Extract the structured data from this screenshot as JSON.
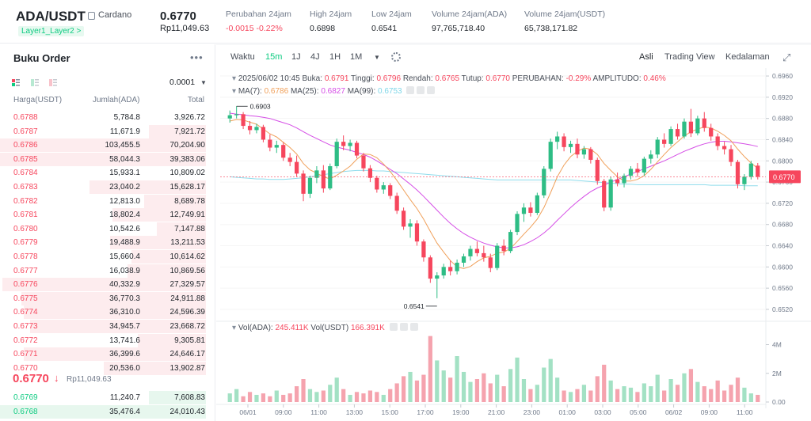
{
  "header": {
    "pair": "ADA/USDT",
    "coin_name": "Cardano",
    "tag": "Layer1_Layer2 >",
    "last_price": "0.6770",
    "last_price_idr": "Rp11,049.63",
    "stats": [
      {
        "label": "Perubahan 24jam",
        "value": "-0.0015 -0.22%",
        "color": "red"
      },
      {
        "label": "High 24jam",
        "value": "0.6898",
        "color": ""
      },
      {
        "label": "Low 24jam",
        "value": "0.6541",
        "color": ""
      },
      {
        "label": "Volume 24jam(ADA)",
        "value": "97,765,718.40",
        "color": ""
      },
      {
        "label": "Volume 24jam(USDT)",
        "value": "65,738,171.82",
        "color": ""
      }
    ]
  },
  "orderbook": {
    "title": "Buku Order",
    "menu": "•••",
    "precision": "0.0001",
    "col_price": "Harga(USDT)",
    "col_amount": "Jumlah(ADA)",
    "col_total": "Total",
    "asks": [
      {
        "p": "0.6788",
        "a": "5,784.8",
        "t": "3,926.72",
        "fill": 0.0
      },
      {
        "p": "0.6787",
        "a": "11,671.9",
        "t": "7,921.72",
        "fill": 0.27
      },
      {
        "p": "0.6786",
        "a": "103,455.5",
        "t": "70,204.90",
        "fill": 1.0
      },
      {
        "p": "0.6785",
        "a": "58,044.3",
        "t": "39,383.06",
        "fill": 1.0
      },
      {
        "p": "0.6784",
        "a": "15,933.1",
        "t": "10,809.02",
        "fill": 0.0
      },
      {
        "p": "0.6783",
        "a": "23,040.2",
        "t": "15,628.17",
        "fill": 0.55
      },
      {
        "p": "0.6782",
        "a": "12,813.0",
        "t": "8,689.78",
        "fill": 0.29
      },
      {
        "p": "0.6781",
        "a": "18,802.4",
        "t": "12,749.91",
        "fill": 0.44
      },
      {
        "p": "0.6780",
        "a": "10,542.6",
        "t": "7,147.88",
        "fill": 0.23
      },
      {
        "p": "0.6779",
        "a": "19,488.9",
        "t": "13,211.53",
        "fill": 0.45
      },
      {
        "p": "0.6778",
        "a": "15,660.4",
        "t": "10,614.62",
        "fill": 0.35
      },
      {
        "p": "0.6777",
        "a": "16,038.9",
        "t": "10,869.56",
        "fill": 0.37
      },
      {
        "p": "0.6776",
        "a": "40,332.9",
        "t": "27,329.57",
        "fill": 0.96
      },
      {
        "p": "0.6775",
        "a": "36,770.3",
        "t": "24,911.88",
        "fill": 0.87
      },
      {
        "p": "0.6774",
        "a": "36,310.0",
        "t": "24,596.39",
        "fill": 0.86
      },
      {
        "p": "0.6773",
        "a": "34,945.7",
        "t": "23,668.72",
        "fill": 0.83
      },
      {
        "p": "0.6772",
        "a": "13,741.6",
        "t": "9,305.81",
        "fill": 0.32
      },
      {
        "p": "0.6771",
        "a": "36,399.6",
        "t": "24,646.17",
        "fill": 0.86
      },
      {
        "p": "0.6770",
        "a": "20,536.0",
        "t": "13,902.87",
        "fill": 0.48
      }
    ],
    "mid_price": "0.6770",
    "mid_arrow": "↓",
    "mid_idr": "Rp11,049.63",
    "bids": [
      {
        "p": "0.6769",
        "a": "11,240.7",
        "t": "7,608.83",
        "fill": 0.27
      },
      {
        "p": "0.6768",
        "a": "35,476.4",
        "t": "24,010.43",
        "fill": 1.0
      }
    ]
  },
  "toolbar": {
    "left": [
      "Waktu",
      "15m",
      "1J",
      "4J",
      "1H",
      "1M"
    ],
    "active": "15m",
    "right": [
      "Asli",
      "Trading View",
      "Kedalaman"
    ],
    "right_active": "Asli"
  },
  "info": {
    "date": "2025/06/02 10:45",
    "open_lbl": "Buka:",
    "open": "0.6791",
    "high_lbl": "Tinggi:",
    "high": "0.6796",
    "low_lbl": "Rendah:",
    "low": "0.6765",
    "close_lbl": "Tutup:",
    "close": "0.6770",
    "chg_lbl": "PERUBAHAN:",
    "chg": "-0.29%",
    "amp_lbl": "AMPLITUDO:",
    "amp": "0.46%",
    "ma7_lbl": "MA(7):",
    "ma7": "0.6786",
    "ma25_lbl": "MA(25):",
    "ma25": "0.6827",
    "ma99_lbl": "MA(99):",
    "ma99": "0.6753",
    "vol_lbl": "Vol(ADA):",
    "vol": "245.411K",
    "volu_lbl": "Vol(USDT)",
    "volu": "166.391K"
  },
  "chart_data": {
    "type": "candlestick",
    "price_ticks": [
      "0.6960",
      "0.6920",
      "0.6880",
      "0.6840",
      "0.6800",
      "0.6760",
      "0.6720",
      "0.6680",
      "0.6640",
      "0.6600",
      "0.6560",
      "0.6520"
    ],
    "price_range": [
      0.6505,
      0.6975
    ],
    "current_price_label": "0.6770",
    "high_label": "0.6903",
    "low_label": "0.6541",
    "vol_ticks": [
      "4M",
      "2M",
      "0.00"
    ],
    "vol_max": 4.8,
    "x_labels": [
      "06/01",
      "09:00",
      "11:00",
      "13:00",
      "15:00",
      "17:00",
      "19:00",
      "21:00",
      "23:00",
      "01:00",
      "03:00",
      "05:00",
      "06/02",
      "09:00",
      "11:00"
    ],
    "candles": [
      [
        0.688,
        0.6895,
        0.6872,
        0.6886
      ],
      [
        0.6886,
        0.6903,
        0.688,
        0.6888
      ],
      [
        0.6888,
        0.6892,
        0.686,
        0.6866
      ],
      [
        0.6866,
        0.6875,
        0.685,
        0.6858
      ],
      [
        0.6858,
        0.687,
        0.6852,
        0.6864
      ],
      [
        0.6864,
        0.6868,
        0.6835,
        0.684
      ],
      [
        0.684,
        0.685,
        0.6818,
        0.6825
      ],
      [
        0.6825,
        0.6838,
        0.6815,
        0.683
      ],
      [
        0.683,
        0.6835,
        0.68,
        0.6806
      ],
      [
        0.6806,
        0.6815,
        0.679,
        0.6798
      ],
      [
        0.6798,
        0.681,
        0.677,
        0.6776
      ],
      [
        0.6776,
        0.6782,
        0.6724,
        0.6738
      ],
      [
        0.6738,
        0.6772,
        0.673,
        0.6768
      ],
      [
        0.6768,
        0.679,
        0.6758,
        0.6782
      ],
      [
        0.6782,
        0.6792,
        0.674,
        0.6748
      ],
      [
        0.6748,
        0.6795,
        0.6745,
        0.679
      ],
      [
        0.679,
        0.6842,
        0.6786,
        0.6836
      ],
      [
        0.6836,
        0.6848,
        0.682,
        0.6828
      ],
      [
        0.6828,
        0.684,
        0.6818,
        0.6834
      ],
      [
        0.6834,
        0.6838,
        0.6805,
        0.681
      ],
      [
        0.681,
        0.6815,
        0.678,
        0.6786
      ],
      [
        0.6786,
        0.6792,
        0.676,
        0.6768
      ],
      [
        0.6768,
        0.6772,
        0.674,
        0.6746
      ],
      [
        0.6746,
        0.676,
        0.6738,
        0.6754
      ],
      [
        0.6754,
        0.6758,
        0.6728,
        0.6734
      ],
      [
        0.6734,
        0.674,
        0.67,
        0.6706
      ],
      [
        0.6706,
        0.6712,
        0.667,
        0.6676
      ],
      [
        0.6676,
        0.669,
        0.6655,
        0.6682
      ],
      [
        0.6682,
        0.6688,
        0.664,
        0.6648
      ],
      [
        0.6648,
        0.6652,
        0.661,
        0.6618
      ],
      [
        0.6618,
        0.6622,
        0.657,
        0.6578
      ],
      [
        0.6578,
        0.659,
        0.6541,
        0.6584
      ],
      [
        0.6584,
        0.6606,
        0.6578,
        0.66
      ],
      [
        0.66,
        0.6612,
        0.6584,
        0.6592
      ],
      [
        0.6592,
        0.6614,
        0.6586,
        0.6608
      ],
      [
        0.6608,
        0.6625,
        0.66,
        0.662
      ],
      [
        0.662,
        0.664,
        0.6612,
        0.6634
      ],
      [
        0.6634,
        0.6648,
        0.662,
        0.6626
      ],
      [
        0.6626,
        0.664,
        0.661,
        0.6618
      ],
      [
        0.6618,
        0.6625,
        0.659,
        0.6598
      ],
      [
        0.6598,
        0.6645,
        0.6594,
        0.664
      ],
      [
        0.664,
        0.6652,
        0.6622,
        0.663
      ],
      [
        0.663,
        0.667,
        0.6626,
        0.6666
      ],
      [
        0.6666,
        0.6705,
        0.666,
        0.67
      ],
      [
        0.67,
        0.672,
        0.6685,
        0.6712
      ],
      [
        0.6712,
        0.6722,
        0.6695,
        0.6702
      ],
      [
        0.6702,
        0.674,
        0.6698,
        0.6735
      ],
      [
        0.6735,
        0.679,
        0.673,
        0.6785
      ],
      [
        0.6785,
        0.6842,
        0.678,
        0.6836
      ],
      [
        0.6836,
        0.6855,
        0.6822,
        0.6846
      ],
      [
        0.6846,
        0.6852,
        0.6818,
        0.6826
      ],
      [
        0.6826,
        0.6838,
        0.6815,
        0.6832
      ],
      [
        0.6832,
        0.6842,
        0.6805,
        0.6812
      ],
      [
        0.6812,
        0.6828,
        0.6804,
        0.6822
      ],
      [
        0.6822,
        0.6826,
        0.6795,
        0.6802
      ],
      [
        0.6802,
        0.6806,
        0.6755,
        0.6762
      ],
      [
        0.6762,
        0.6766,
        0.6705,
        0.6712
      ],
      [
        0.6712,
        0.677,
        0.6706,
        0.6765
      ],
      [
        0.6765,
        0.6778,
        0.6752,
        0.6758
      ],
      [
        0.6758,
        0.6776,
        0.675,
        0.6772
      ],
      [
        0.6772,
        0.679,
        0.6765,
        0.6785
      ],
      [
        0.6785,
        0.6796,
        0.677,
        0.6778
      ],
      [
        0.6778,
        0.6808,
        0.6772,
        0.6804
      ],
      [
        0.6804,
        0.682,
        0.6795,
        0.6812
      ],
      [
        0.6812,
        0.6845,
        0.6805,
        0.684
      ],
      [
        0.684,
        0.6852,
        0.6825,
        0.6832
      ],
      [
        0.6832,
        0.6865,
        0.6828,
        0.686
      ],
      [
        0.686,
        0.687,
        0.684,
        0.6846
      ],
      [
        0.6846,
        0.688,
        0.6842,
        0.6874
      ],
      [
        0.6874,
        0.6898,
        0.6845,
        0.6852
      ],
      [
        0.6852,
        0.6885,
        0.6848,
        0.688
      ],
      [
        0.688,
        0.6892,
        0.6855,
        0.6862
      ],
      [
        0.6862,
        0.687,
        0.6838,
        0.6846
      ],
      [
        0.6846,
        0.6852,
        0.682,
        0.6828
      ],
      [
        0.6828,
        0.6836,
        0.6812,
        0.6822
      ],
      [
        0.6822,
        0.683,
        0.679,
        0.6798
      ],
      [
        0.6798,
        0.6802,
        0.6748,
        0.6756
      ],
      [
        0.6756,
        0.6775,
        0.6745,
        0.677
      ],
      [
        0.677,
        0.68,
        0.6765,
        0.6795
      ],
      [
        0.6791,
        0.6796,
        0.6765,
        0.677
      ]
    ],
    "volumes": [
      0.6,
      0.9,
      0.4,
      0.7,
      0.5,
      0.6,
      0.4,
      0.8,
      0.5,
      0.6,
      1.1,
      1.6,
      0.9,
      0.7,
      0.8,
      1.2,
      1.7,
      0.9,
      0.5,
      0.7,
      0.6,
      0.8,
      0.7,
      0.5,
      0.9,
      1.3,
      1.8,
      2.1,
      1.5,
      1.9,
      4.6,
      2.9,
      2.2,
      1.7,
      3.2,
      2.1,
      1.4,
      1.6,
      2.0,
      1.3,
      1.9,
      1.1,
      2.3,
      3.1,
      1.6,
      0.9,
      1.2,
      2.4,
      3.0,
      1.7,
      0.8,
      0.7,
      0.9,
      1.2,
      0.8,
      1.8,
      2.6,
      1.5,
      0.9,
      1.1,
      1.0,
      0.7,
      1.3,
      1.1,
      1.9,
      0.8,
      1.6,
      1.2,
      2.0,
      2.3,
      1.4,
      1.1,
      0.9,
      1.5,
      0.8,
      1.2,
      1.7,
      1.0,
      0.6,
      0.5
    ],
    "ma7": [
      0.6875,
      0.6878,
      0.6877,
      0.6873,
      0.6869,
      0.686,
      0.6851,
      0.6845,
      0.6835,
      0.6825,
      0.6813,
      0.6795,
      0.6783,
      0.6777,
      0.677,
      0.6766,
      0.6773,
      0.6781,
      0.679,
      0.6803,
      0.6813,
      0.6812,
      0.6806,
      0.6794,
      0.678,
      0.6763,
      0.6745,
      0.6727,
      0.671,
      0.669,
      0.6667,
      0.6645,
      0.6628,
      0.6612,
      0.66,
      0.6597,
      0.6601,
      0.661,
      0.6617,
      0.662,
      0.6626,
      0.6628,
      0.6635,
      0.6648,
      0.6662,
      0.6675,
      0.669,
      0.6712,
      0.674,
      0.677,
      0.6792,
      0.6808,
      0.6818,
      0.6824,
      0.6822,
      0.6812,
      0.6795,
      0.6782,
      0.677,
      0.6762,
      0.6762,
      0.6765,
      0.6772,
      0.6784,
      0.6798,
      0.6812,
      0.6825,
      0.6836,
      0.6847,
      0.6855,
      0.686,
      0.6864,
      0.6862,
      0.6856,
      0.6848,
      0.6838,
      0.6822,
      0.6808,
      0.6796,
      0.6786
    ],
    "ma25": [
      0.689,
      0.6888,
      0.6887,
      0.6885,
      0.6884,
      0.6882,
      0.688,
      0.6876,
      0.6872,
      0.6868,
      0.6862,
      0.6855,
      0.6848,
      0.6842,
      0.6836,
      0.683,
      0.6826,
      0.6823,
      0.682,
      0.6816,
      0.6812,
      0.6807,
      0.68,
      0.6792,
      0.6784,
      0.6776,
      0.6766,
      0.6756,
      0.6745,
      0.6733,
      0.672,
      0.6707,
      0.6694,
      0.6682,
      0.6672,
      0.6663,
      0.6656,
      0.665,
      0.6645,
      0.6641,
      0.6638,
      0.6636,
      0.6636,
      0.6638,
      0.6642,
      0.6648,
      0.6655,
      0.6664,
      0.6675,
      0.6688,
      0.67,
      0.6712,
      0.6723,
      0.6733,
      0.6742,
      0.6749,
      0.6754,
      0.676,
      0.6765,
      0.677,
      0.6775,
      0.678,
      0.6785,
      0.679,
      0.6795,
      0.68,
      0.6806,
      0.6812,
      0.6818,
      0.6823,
      0.6828,
      0.6832,
      0.6835,
      0.6837,
      0.6837,
      0.6836,
      0.6834,
      0.6832,
      0.683,
      0.6827
    ],
    "ma99": [
      0.677,
      0.6769,
      0.6768,
      0.6767,
      0.6766,
      0.6766,
      0.6765,
      0.6765,
      0.6765,
      0.6766,
      0.6767,
      0.6768,
      0.677,
      0.6772,
      0.6774,
      0.6776,
      0.6778,
      0.678,
      0.6781,
      0.6782,
      0.6782,
      0.6782,
      0.6781,
      0.6781,
      0.678,
      0.6779,
      0.6778,
      0.6777,
      0.6776,
      0.6775,
      0.6774,
      0.6773,
      0.6772,
      0.6771,
      0.677,
      0.6769,
      0.6768,
      0.6767,
      0.6766,
      0.6765,
      0.6764,
      0.6764,
      0.6764,
      0.6764,
      0.6764,
      0.6764,
      0.6764,
      0.6764,
      0.6764,
      0.6764,
      0.6764,
      0.6764,
      0.6763,
      0.6762,
      0.6761,
      0.676,
      0.6759,
      0.6758,
      0.6757,
      0.6756,
      0.6756,
      0.6755,
      0.6755,
      0.6755,
      0.6755,
      0.6755,
      0.6755,
      0.6755,
      0.6755,
      0.6755,
      0.6755,
      0.6755,
      0.6754,
      0.6754,
      0.6754,
      0.6754,
      0.6754,
      0.6753,
      0.6753,
      0.6753
    ]
  }
}
